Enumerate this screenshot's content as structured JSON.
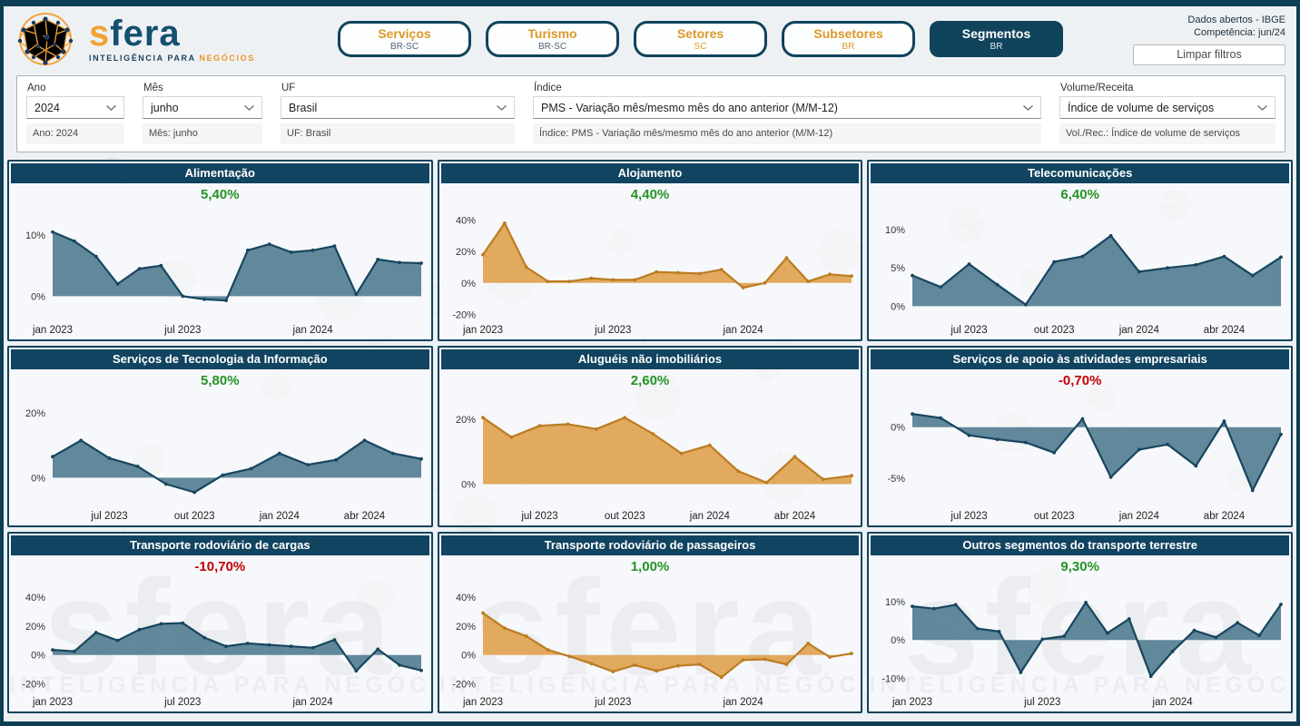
{
  "header": {
    "logo": {
      "brand_first": "s",
      "brand_rest": "fera",
      "tagline_dark": "INTELIGÊNCIA PARA",
      "tagline_accent": "NEGÓCIOS"
    },
    "tabs": [
      {
        "label": "Serviços",
        "sublabel": "BR-SC",
        "active": false,
        "sublabel_accent": false
      },
      {
        "label": "Turismo",
        "sublabel": "BR-SC",
        "active": false,
        "sublabel_accent": false
      },
      {
        "label": "Setores",
        "sublabel": "SC",
        "active": false,
        "sublabel_accent": true
      },
      {
        "label": "Subsetores",
        "sublabel": "BR",
        "active": false,
        "sublabel_accent": true
      },
      {
        "label": "Segmentos",
        "sublabel": "BR",
        "active": true,
        "sublabel_accent": false
      }
    ],
    "info_line1": "Dados abertos - IBGE",
    "info_line2": "Competência: jun/24",
    "clear_button": "Limpar filtros"
  },
  "filters": [
    {
      "label": "Ano",
      "value": "2024",
      "caption": "Ano: 2024"
    },
    {
      "label": "Mês",
      "value": "junho",
      "caption": "Mês: junho"
    },
    {
      "label": "UF",
      "value": "Brasil",
      "caption": "UF: Brasil"
    },
    {
      "label": "Índice",
      "value": "PMS - Variação mês/mesmo mês do ano anterior (M/M-12)",
      "caption": "Índice: PMS - Variação mês/mesmo mês do ano anterior (M/M-12)"
    },
    {
      "label": "Volume/Receita",
      "value": "Índice de volume de serviços",
      "caption": "Vol./Rec.: Índice de volume de serviços"
    }
  ],
  "watermark": {
    "brand": "sfera",
    "tagline": "INTELIGÊNCIA PARA NEGÓCIOS"
  },
  "colors": {
    "teal_fill": "#557e92",
    "teal_stroke": "#17465f",
    "orange_fill": "#e0a350",
    "orange_stroke": "#bb7c22",
    "kpi_positive": "#269326",
    "kpi_negative": "#c00000",
    "title_bar": "#114460",
    "tick_text": "#333333"
  },
  "chart_data": [
    {
      "type": "area",
      "title": "Alimentação",
      "kpi": "5,40%",
      "kpi_state": "positive",
      "series_color": "teal",
      "x_start": "jan 2023",
      "values": [
        10.5,
        9,
        6.5,
        2,
        4.5,
        5,
        0,
        -0.5,
        -0.7,
        7.5,
        8.5,
        7.2,
        7.5,
        8.2,
        0.3,
        6,
        5.5,
        5.4
      ],
      "ylim": [
        -3.5,
        14
      ],
      "yticks": [
        {
          "v": 10,
          "label": "10%"
        },
        {
          "v": 0,
          "label": "0%"
        }
      ],
      "xticks": [
        {
          "i": 0,
          "label": "jan 2023"
        },
        {
          "i": 6,
          "label": "jul 2023"
        },
        {
          "i": 12,
          "label": "jan 2024"
        }
      ]
    },
    {
      "type": "area",
      "title": "Alojamento",
      "kpi": "4,40%",
      "kpi_state": "positive",
      "series_color": "orange",
      "x_start": "jan 2023",
      "values": [
        18,
        38,
        10,
        1,
        1,
        3,
        2,
        2,
        7,
        6.5,
        6,
        8.5,
        -3,
        0,
        16,
        1,
        5.5,
        4.4
      ],
      "ylim": [
        -22,
        46
      ],
      "yticks": [
        {
          "v": 40,
          "label": "40%"
        },
        {
          "v": 20,
          "label": "20%"
        },
        {
          "v": 0,
          "label": "0%"
        },
        {
          "v": -20,
          "label": "-20%"
        }
      ],
      "xticks": [
        {
          "i": 0,
          "label": "jan 2023"
        },
        {
          "i": 6,
          "label": "jul 2023"
        },
        {
          "i": 12,
          "label": "jan 2024"
        }
      ]
    },
    {
      "type": "area",
      "title": "Telecomunicações",
      "kpi": "6,40%",
      "kpi_state": "positive",
      "series_color": "teal",
      "x_start": "mai 2023",
      "values": [
        4,
        2.5,
        5.5,
        2.8,
        0.2,
        5.8,
        6.5,
        9.2,
        4.5,
        5,
        5.4,
        6.5,
        4,
        6.4
      ],
      "ylim": [
        -1.5,
        12.5
      ],
      "yticks": [
        {
          "v": 10,
          "label": "10%"
        },
        {
          "v": 5,
          "label": "5%"
        },
        {
          "v": 0,
          "label": "0%"
        }
      ],
      "xticks": [
        {
          "i": 2,
          "label": "jul 2023"
        },
        {
          "i": 5,
          "label": "out 2023"
        },
        {
          "i": 8,
          "label": "jan 2024"
        },
        {
          "i": 11,
          "label": "abr 2024"
        }
      ]
    },
    {
      "type": "area",
      "title": "Serviços de Tecnologia da Informação",
      "kpi": "5,80%",
      "kpi_state": "positive",
      "series_color": "teal",
      "x_start": "mai 2023",
      "values": [
        6.5,
        11.5,
        6,
        3.5,
        -2,
        -4.5,
        0.8,
        2.8,
        7.5,
        4,
        5.5,
        11.5,
        7.5,
        5.8
      ],
      "ylim": [
        -8,
        25
      ],
      "yticks": [
        {
          "v": 20,
          "label": "20%"
        },
        {
          "v": 0,
          "label": "0%"
        }
      ],
      "xticks": [
        {
          "i": 2,
          "label": "jul 2023"
        },
        {
          "i": 5,
          "label": "out 2023"
        },
        {
          "i": 8,
          "label": "jan 2024"
        },
        {
          "i": 11,
          "label": "abr 2024"
        }
      ]
    },
    {
      "type": "area",
      "title": "Aluguéis não imobiliários",
      "kpi": "2,60%",
      "kpi_state": "positive",
      "series_color": "orange",
      "x_start": "mai 2023",
      "values": [
        20.5,
        14.5,
        18,
        18.5,
        17,
        20.5,
        15.5,
        9.5,
        12,
        4,
        0.5,
        8.5,
        1.5,
        2.6
      ],
      "ylim": [
        -6,
        27
      ],
      "yticks": [
        {
          "v": 20,
          "label": "20%"
        },
        {
          "v": 0,
          "label": "0%"
        }
      ],
      "xticks": [
        {
          "i": 2,
          "label": "jul 2023"
        },
        {
          "i": 5,
          "label": "out 2023"
        },
        {
          "i": 8,
          "label": "jan 2024"
        },
        {
          "i": 11,
          "label": "abr 2024"
        }
      ]
    },
    {
      "type": "area",
      "title": "Serviços de apoio às atividades empresariais",
      "kpi": "-0,70%",
      "kpi_state": "negative",
      "series_color": "teal",
      "x_start": "mai 2023",
      "values": [
        1.3,
        0.9,
        -0.8,
        -1.2,
        -1.5,
        -2.5,
        0.8,
        -4.9,
        -2.2,
        -1.7,
        -3.8,
        0.6,
        -6.2,
        -0.7
      ],
      "ylim": [
        -7.5,
        3
      ],
      "yticks": [
        {
          "v": 0,
          "label": "0%"
        },
        {
          "v": -5,
          "label": "-5%"
        }
      ],
      "xticks": [
        {
          "i": 2,
          "label": "jul 2023"
        },
        {
          "i": 5,
          "label": "out 2023"
        },
        {
          "i": 8,
          "label": "jan 2024"
        },
        {
          "i": 11,
          "label": "abr 2024"
        }
      ]
    },
    {
      "type": "area",
      "title": "Transporte rodoviário de cargas",
      "kpi": "-10,70%",
      "kpi_state": "negative",
      "series_color": "teal",
      "watermark": true,
      "x_start": "jan 2023",
      "values": [
        3.5,
        2.5,
        15.5,
        10,
        17.5,
        21.5,
        22,
        12,
        6,
        8,
        7,
        6,
        5,
        10.5,
        -11,
        4,
        -7,
        -10.7
      ],
      "ylim": [
        -24,
        50
      ],
      "yticks": [
        {
          "v": 40,
          "label": "40%"
        },
        {
          "v": 20,
          "label": "20%"
        },
        {
          "v": 0,
          "label": "0%"
        },
        {
          "v": -20,
          "label": "-20%"
        }
      ],
      "xticks": [
        {
          "i": 0,
          "label": "jan 2023"
        },
        {
          "i": 6,
          "label": "jul 2023"
        },
        {
          "i": 12,
          "label": "jan 2024"
        }
      ]
    },
    {
      "type": "area",
      "title": "Transporte rodoviário de passageiros",
      "kpi": "1,00%",
      "kpi_state": "positive",
      "series_color": "orange",
      "watermark": true,
      "x_start": "jan 2023",
      "values": [
        29,
        18.5,
        13,
        3.5,
        -1,
        -6,
        -11.5,
        -7,
        -11,
        -7.5,
        -6.5,
        -15.5,
        -3.5,
        -3,
        -6.5,
        8,
        -1.5,
        1.0
      ],
      "ylim": [
        -24,
        50
      ],
      "yticks": [
        {
          "v": 40,
          "label": "40%"
        },
        {
          "v": 20,
          "label": "20%"
        },
        {
          "v": 0,
          "label": "0%"
        },
        {
          "v": -20,
          "label": "-20%"
        }
      ],
      "xticks": [
        {
          "i": 0,
          "label": "jan 2023"
        },
        {
          "i": 6,
          "label": "jul 2023"
        },
        {
          "i": 12,
          "label": "jan 2024"
        }
      ]
    },
    {
      "type": "area",
      "title": "Outros segmentos do transporte terrestre",
      "kpi": "9,30%",
      "kpi_state": "positive",
      "series_color": "teal",
      "watermark": true,
      "x_start": "jan 2023",
      "values": [
        8.8,
        8.2,
        9.2,
        3,
        2.2,
        -8.5,
        0.2,
        1,
        9.8,
        1.8,
        5.5,
        -9.5,
        -3,
        2.5,
        0.7,
        4.5,
        1.2,
        9.3
      ],
      "ylim": [
        -13,
        15
      ],
      "yticks": [
        {
          "v": 10,
          "label": "10%"
        },
        {
          "v": 0,
          "label": "0%"
        },
        {
          "v": -10,
          "label": "-10%"
        }
      ],
      "xticks": [
        {
          "i": 0,
          "label": "jan 2023"
        },
        {
          "i": 6,
          "label": "jul 2023"
        },
        {
          "i": 12,
          "label": "jan 2024"
        }
      ]
    }
  ]
}
